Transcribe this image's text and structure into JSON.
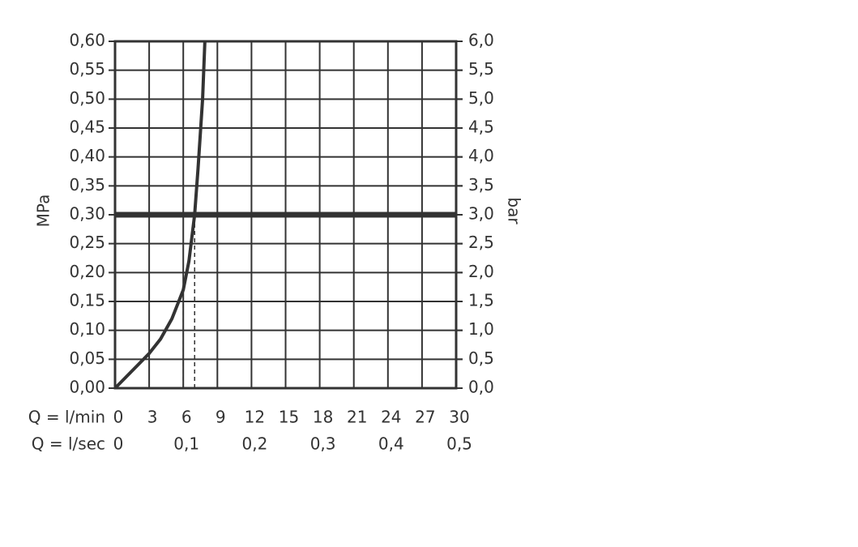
{
  "chart_data": {
    "type": "line",
    "x_label": "Q = l/min",
    "x2_label": "Q = l/sec",
    "y_label": "MPa",
    "y2_label": "bar",
    "x": [
      0,
      1,
      2,
      3,
      4,
      5,
      6,
      6.5,
      7,
      7.3,
      7.7,
      7.9
    ],
    "series": [
      {
        "color": "#333333",
        "values": [
          0,
          0.02,
          0.04,
          0.06,
          0.085,
          0.12,
          0.17,
          0.22,
          0.3,
          0.38,
          0.5,
          0.6
        ]
      }
    ],
    "hline": 0.3,
    "vlines": [
      {
        "x": 6,
        "y": 0.17
      },
      {
        "x": 7,
        "y": 0.3
      }
    ],
    "xlim": [
      0,
      30
    ],
    "xticks": [
      0,
      3,
      6,
      9,
      12,
      15,
      18,
      21,
      24,
      27,
      30
    ],
    "x2lim": [
      0,
      0.5
    ],
    "x2ticks": [
      0,
      {
        "value": 0.1,
        "label": "0,1"
      },
      {
        "value": 0.2,
        "label": "0,2"
      },
      {
        "value": 0.3,
        "label": "0,3"
      },
      {
        "value": 0.4,
        "label": "0,4"
      },
      {
        "value": 0.5,
        "label": "0,5"
      }
    ],
    "ylim": [
      0,
      0.6
    ],
    "yticks": [
      {
        "value": 0,
        "label": "0,00"
      },
      {
        "value": 0.05,
        "label": "0,05"
      },
      {
        "value": 0.1,
        "label": "0,10"
      },
      {
        "value": 0.15,
        "label": "0,15"
      },
      {
        "value": 0.2,
        "label": "0,20"
      },
      {
        "value": 0.25,
        "label": "0,25"
      },
      {
        "value": 0.3,
        "label": "0,30"
      },
      {
        "value": 0.35,
        "label": "0,35"
      },
      {
        "value": 0.4,
        "label": "0,40"
      },
      {
        "value": 0.45,
        "label": "0,45"
      },
      {
        "value": 0.5,
        "label": "0,50"
      },
      {
        "value": 0.55,
        "label": "0,55"
      },
      {
        "value": 0.6,
        "label": "0,60"
      }
    ],
    "y2lim": [
      0,
      6
    ],
    "y2ticks": [
      {
        "value": 0,
        "label": "0,0"
      },
      {
        "value": 0.5,
        "label": "0,5"
      },
      {
        "value": 1,
        "label": "1,0"
      },
      {
        "value": 1.5,
        "label": "1,5"
      },
      {
        "value": 2,
        "label": "2,0"
      },
      {
        "value": 2.5,
        "label": "2,5"
      },
      {
        "value": 3,
        "label": "3,0"
      },
      {
        "value": 3.5,
        "label": "3,5"
      },
      {
        "value": 4,
        "label": "4,0"
      },
      {
        "value": 4.5,
        "label": "4,5"
      },
      {
        "value": 5,
        "label": "5,0"
      },
      {
        "value": 5.5,
        "label": "5,5"
      },
      {
        "value": 6,
        "label": "6,0"
      }
    ],
    "grid": true
  }
}
